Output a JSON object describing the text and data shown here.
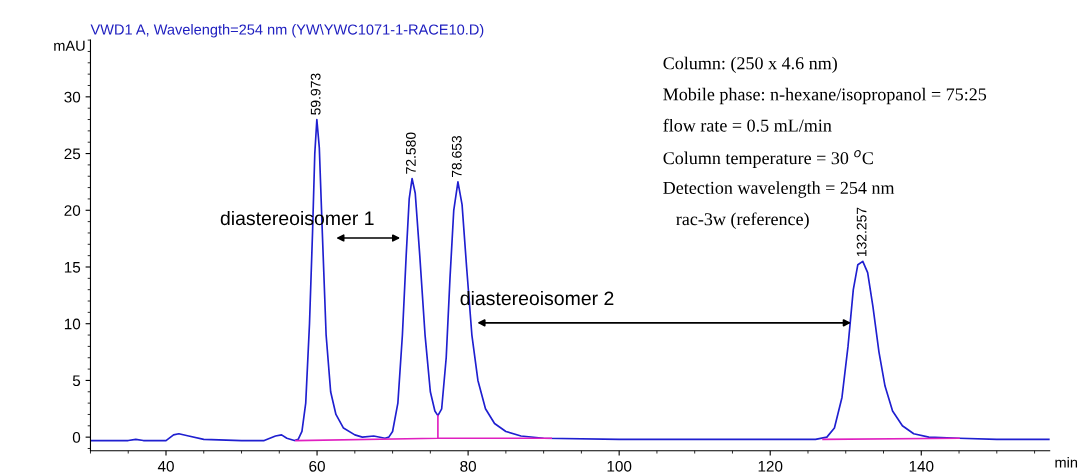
{
  "chart_data": {
    "type": "line",
    "title": "VWD1 A, Wavelength=254 nm (YW\\YWC1071-1-RACE10.D)",
    "xlabel": "min",
    "ylabel": "mAU",
    "series": [
      {
        "color": "#1f1fd0",
        "x": [
          30,
          35,
          36,
          37,
          40,
          41,
          41.7,
          43,
          45,
          50,
          53,
          54.5,
          55.3,
          56,
          57,
          57.5,
          58,
          58.5,
          59,
          59.4,
          59.7,
          59.973,
          60.3,
          60.7,
          61.2,
          61.8,
          62.5,
          63.5,
          65,
          66,
          67.5,
          69,
          69.5,
          70,
          70.7,
          71.3,
          71.8,
          72.2,
          72.58,
          73,
          73.6,
          74.3,
          75,
          75.6,
          76,
          76.5,
          77.1,
          77.6,
          78.1,
          78.653,
          79.2,
          79.8,
          80.5,
          81.3,
          82.3,
          83.5,
          85,
          87,
          90,
          100,
          110,
          120,
          126,
          127.5,
          128.5,
          129.5,
          130.3,
          131,
          131.6,
          132.257,
          132.9,
          133.6,
          134.4,
          135.2,
          136.2,
          137.5,
          139,
          141,
          145,
          150,
          157
        ],
        "values": [
          -0.3,
          -0.3,
          -0.2,
          -0.3,
          -0.3,
          0.2,
          0.3,
          0.1,
          -0.2,
          -0.3,
          -0.3,
          0.1,
          0.2,
          -0.1,
          -0.3,
          -0.2,
          0.5,
          3,
          10,
          18,
          25,
          28.0,
          25.5,
          18,
          9,
          4,
          2,
          0.8,
          0.2,
          0,
          0.1,
          -0.1,
          0,
          0.5,
          3,
          9,
          16,
          21,
          22.8,
          21.5,
          16,
          9,
          4,
          2.3,
          1.9,
          2.5,
          7,
          14,
          20,
          22.5,
          20.5,
          15,
          9,
          5,
          2.5,
          1.2,
          0.5,
          0.1,
          -0.1,
          -0.2,
          -0.2,
          -0.2,
          -0.2,
          0,
          0.8,
          3.5,
          8,
          13,
          15.2,
          15.5,
          14.5,
          11.5,
          7.5,
          4.5,
          2.3,
          1,
          0.3,
          0,
          -0.1,
          -0.2,
          -0.2
        ]
      },
      {
        "color": "#e020c0",
        "x": [
          57.2,
          76,
          76,
          76,
          91,
          110,
          127,
          145
        ],
        "values": [
          -0.3,
          -0.1,
          1.9,
          -0.1,
          -0.1,
          null,
          -0.2,
          -0.1
        ]
      }
    ],
    "xlim": [
      30,
      157
    ],
    "ylim": [
      -1.2,
      35
    ],
    "xticks": [
      40,
      60,
      80,
      100,
      120,
      140
    ],
    "yticks": [
      0,
      5,
      10,
      15,
      20,
      25,
      30
    ],
    "grid": false,
    "legend": false,
    "marker": "none",
    "line_style": "solid",
    "annotations": [
      {
        "text": "59.973",
        "x": 59.973,
        "y": 28.0
      },
      {
        "text": "72.580",
        "x": 72.58,
        "y": 22.8
      },
      {
        "text": "78.653",
        "x": 78.653,
        "y": 22.5
      },
      {
        "text": "132.257",
        "x": 132.257,
        "y": 15.5
      },
      "diastereoisomer 1",
      "diastereoisomer 2",
      "Column: (250 x 4.6 nm)",
      "Mobile phase: n-hexane/isopropanol = 75:25",
      "flow rate = 0.5 mL/min",
      "Column temperature = 30 $^{o}$C",
      "Detection wavelength = 254 nm",
      "rac-3w (reference)"
    ]
  }
}
